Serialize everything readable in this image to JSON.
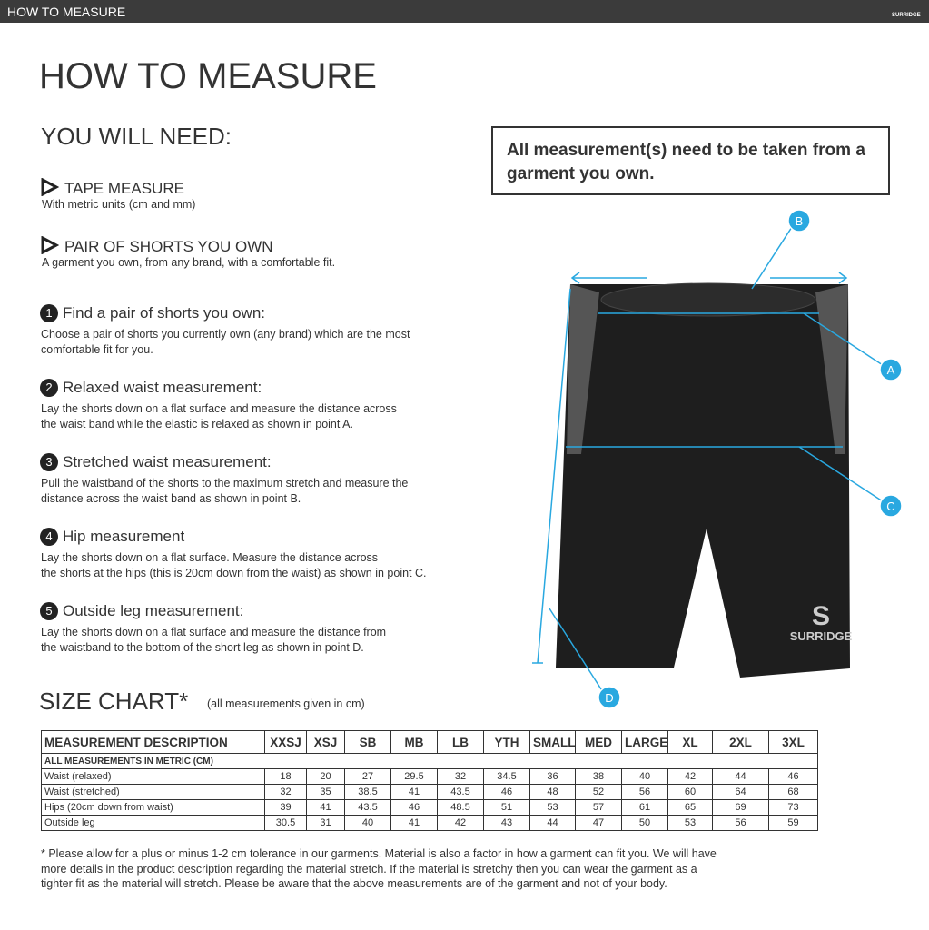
{
  "top_bar": {
    "title": "HOW TO MEASURE",
    "brand": "SURRIDGE"
  },
  "title": "HOW TO MEASURE",
  "need": {
    "heading": "YOU WILL NEED:",
    "items": [
      {
        "title": "TAPE MEASURE",
        "text": "With metric units (cm and mm)"
      },
      {
        "title": "PAIR OF SHORTS YOU OWN",
        "text": "A garment you own, from any brand, with a comfortable fit."
      }
    ]
  },
  "notice": "All measurement(s) need to be taken from a garment you own.",
  "steps": [
    {
      "number": "1",
      "title": "Find a pair of shorts you own:",
      "lines": [
        "Choose a pair of shorts you currently own (any brand) which are the most",
        "comfortable fit for you."
      ]
    },
    {
      "number": "2",
      "title": "Relaxed waist measurement:",
      "lines": [
        "Lay the shorts down on a flat surface and measure the distance across",
        "the waist band while the elastic is relaxed as shown in point A."
      ]
    },
    {
      "number": "3",
      "title": "Stretched waist measurement:",
      "lines": [
        "Pull the waistband of the shorts to the maximum stretch and measure the",
        "distance across the waist band as shown in point B."
      ]
    },
    {
      "number": "4",
      "title": "Hip measurement",
      "lines": [
        "Lay the shorts down on a flat surface. Measure the distance across",
        "the shorts at the hips (this is 20cm down from the waist)  as shown in point C."
      ]
    },
    {
      "number": "5",
      "title": "Outside leg measurement:",
      "lines": [
        "Lay the shorts down on a flat surface and measure the distance from",
        "the waistband to the bottom of the short leg as shown in point D."
      ]
    }
  ],
  "diagram": {
    "points": [
      "B",
      "A",
      "C",
      "D"
    ],
    "logo": "SURRIDGE"
  },
  "size_chart": {
    "title": "SIZE CHART*",
    "note": "(all measurements given in cm)",
    "header": [
      "MEASUREMENT DESCRIPTION",
      "XXSJ",
      "XSJ",
      "SB",
      "MB",
      "LB",
      "YTH",
      "SMALL",
      "MED",
      "LARGE",
      "XL",
      "2XL",
      "3XL"
    ],
    "subheader": "ALL MEASUREMENTS IN METRIC (CM)",
    "rows": [
      [
        "Waist (relaxed)",
        18,
        20,
        27,
        29.5,
        32,
        34.5,
        36,
        38,
        40,
        42,
        44,
        46
      ],
      [
        "Waist (stretched)",
        32,
        35,
        38.5,
        41,
        43.5,
        46,
        48,
        52,
        56,
        60,
        64,
        68
      ],
      [
        "Hips (20cm down from waist)",
        39,
        41,
        43.5,
        46,
        48.5,
        51,
        53,
        57,
        61,
        65,
        69,
        73
      ],
      [
        "Outside leg",
        30.5,
        31,
        40,
        41,
        42,
        43,
        44,
        47,
        50,
        53,
        56,
        59
      ]
    ]
  },
  "footnote": [
    "* Please allow for a plus or minus 1-2 cm tolerance in our garments. Material is also a factor in how a garment can fit you. We will have",
    "more details in the product description regarding the material stretch.  If the material is stretchy then you can wear the garment as a",
    "tighter fit as the material will stretch.  Please be aware that the above measurements are of the garment and not of your body."
  ]
}
